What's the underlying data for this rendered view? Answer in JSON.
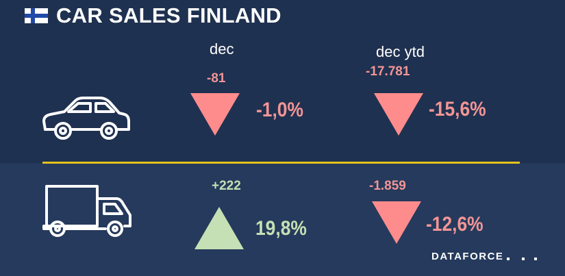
{
  "header": {
    "title": "CAR SALES FINLAND",
    "flag_icon": "finland-flag-icon"
  },
  "columns": {
    "month_label": "dec",
    "ytd_label": "dec ytd"
  },
  "cars": {
    "icon": "car-icon",
    "month": {
      "delta": "-81",
      "pct": "-1,0%",
      "direction": "down"
    },
    "ytd": {
      "delta": "-17.781",
      "pct": "-15,6%",
      "direction": "down"
    }
  },
  "lcv": {
    "icon": "truck-icon",
    "month": {
      "delta": "+222",
      "pct": "19,8%",
      "direction": "up"
    },
    "ytd": {
      "delta": "-1.859",
      "pct": "-12,6%",
      "direction": "down"
    }
  },
  "footer": {
    "brand": "DATAFORCE"
  },
  "colors": {
    "background_top": "#1f3150",
    "background_bottom": "#253a5c",
    "negative": "#ff8c8c",
    "positive": "#c5e0b4",
    "divider": "#e6c21a"
  }
}
